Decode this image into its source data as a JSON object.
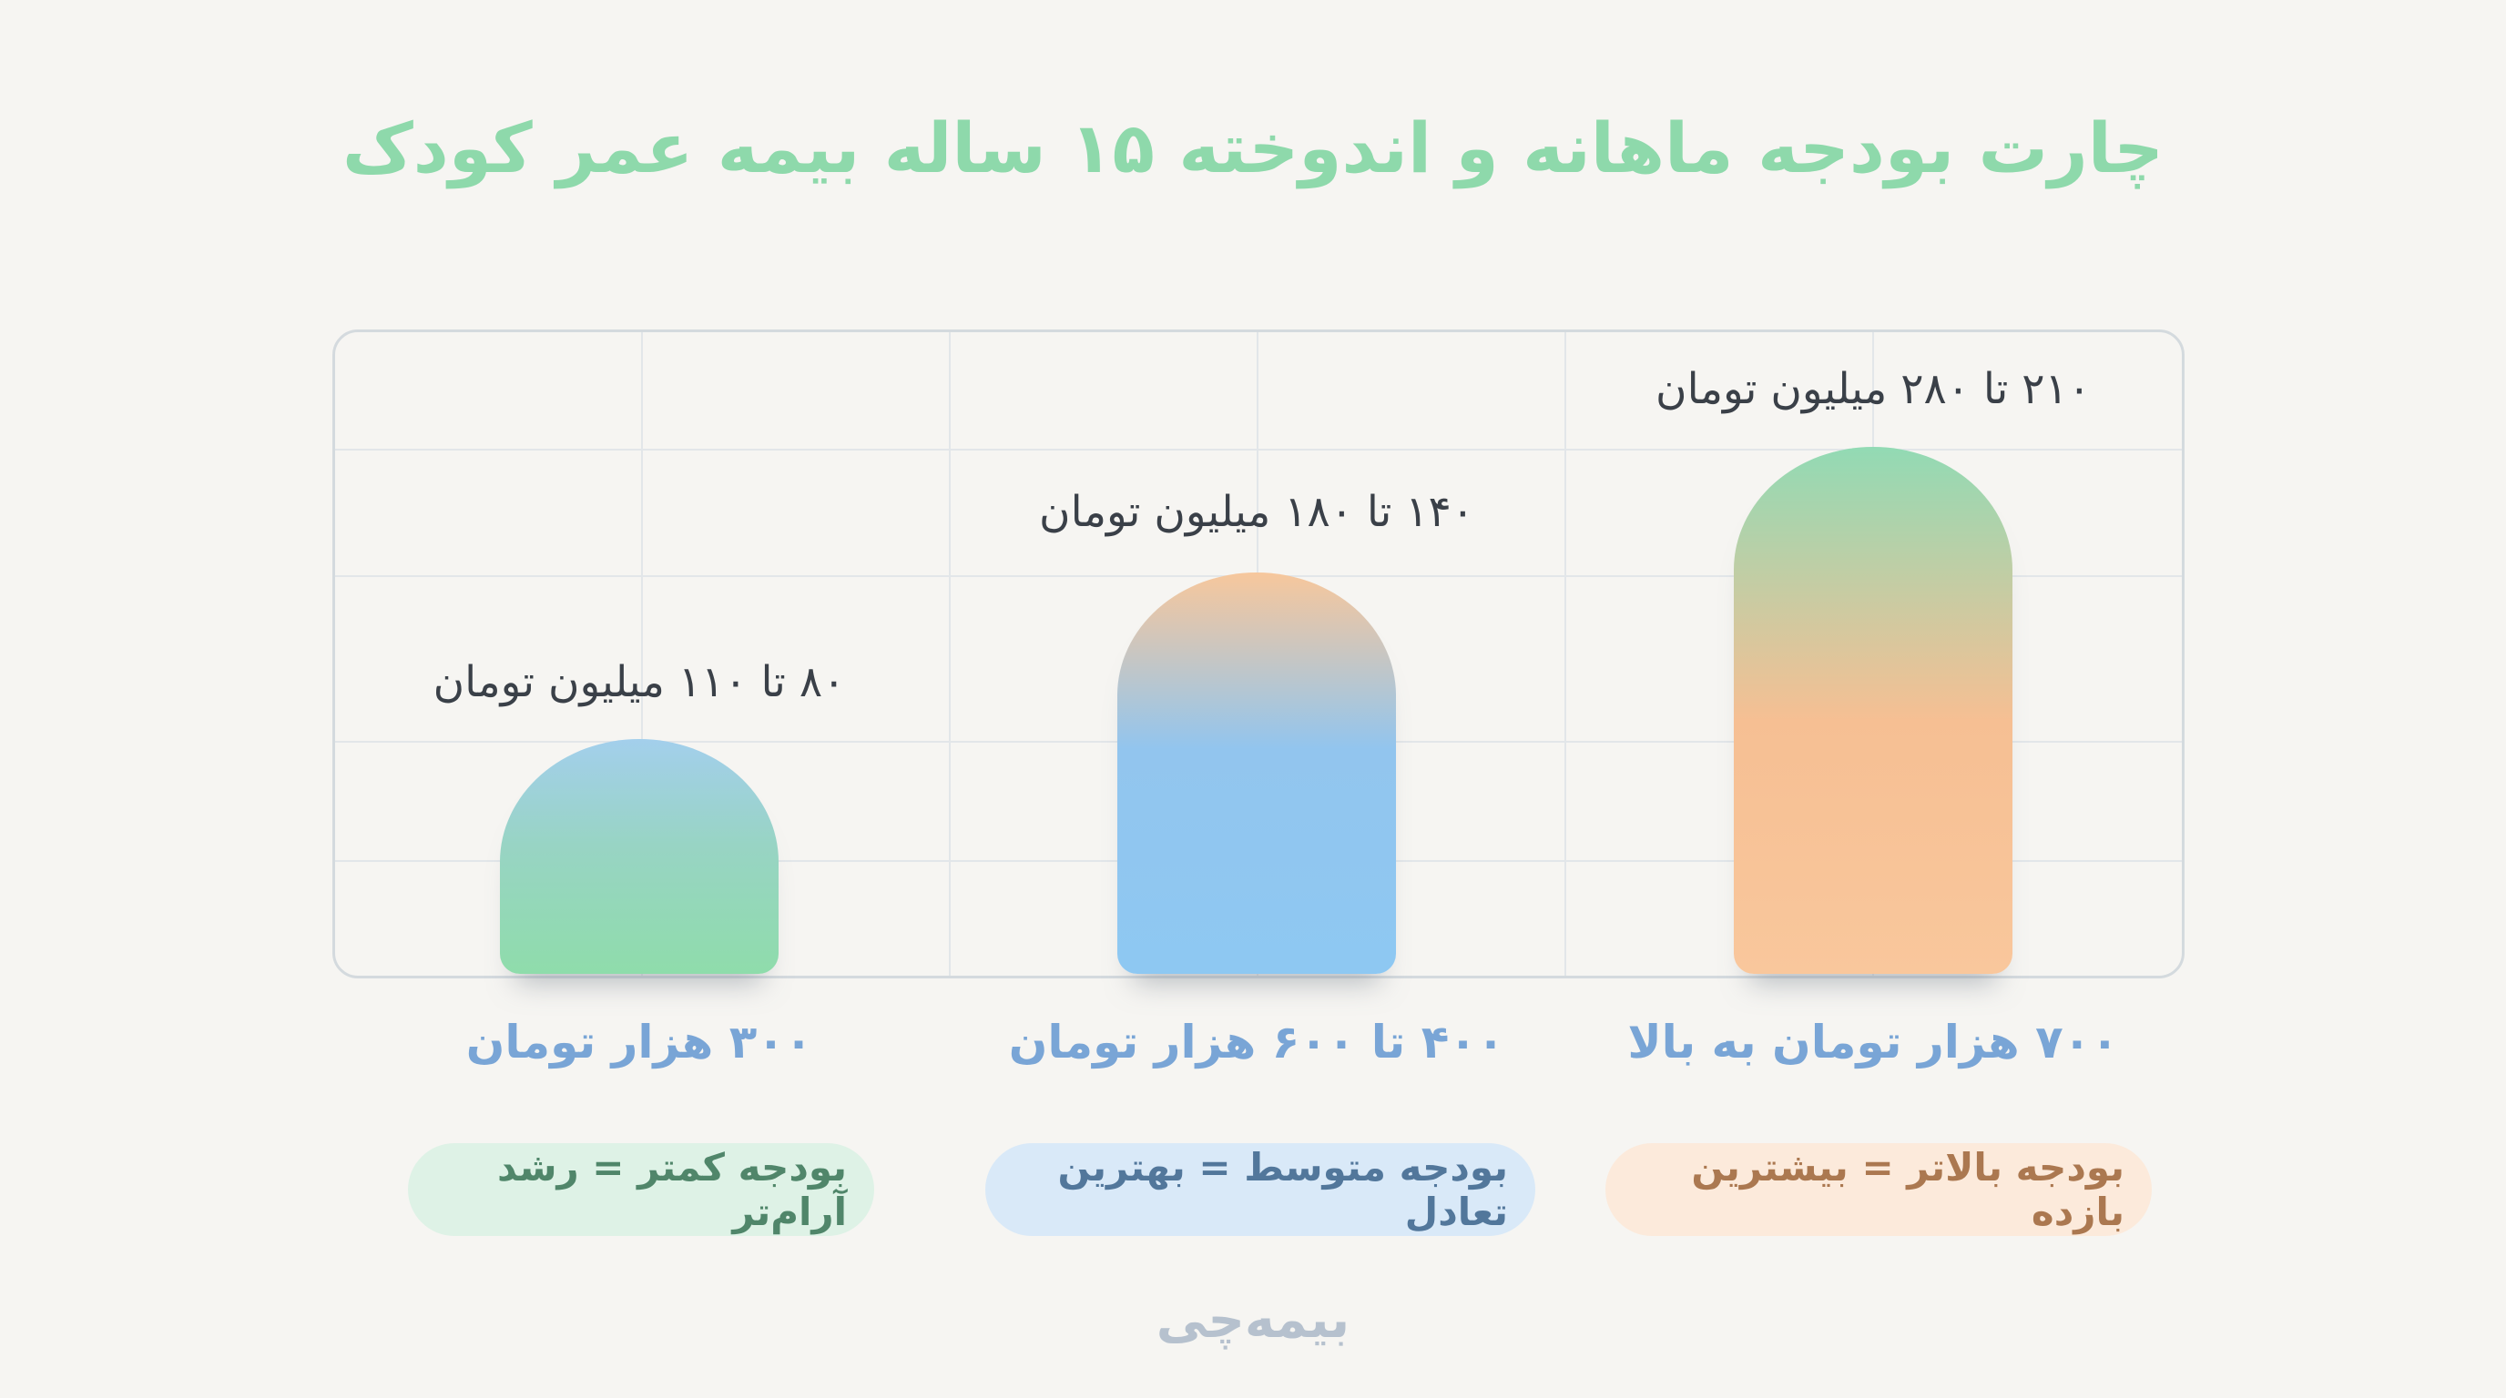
{
  "title": "چارت بودجه ماهانه و اندوخته ۱۵ ساله بیمه عمر کودک",
  "watermark": "بیمه‌چی",
  "bars": [
    {
      "value_label": "۸۰ تا ۱۱۰ میلیون تومان",
      "axis_label": "۳۰۰ هزار تومان",
      "badge": "بودجه کمتر = رشد آرام‌تر"
    },
    {
      "value_label": "۱۴۰ تا ۱۸۰ میلیون تومان",
      "axis_label": "۴۰۰ تا ۶۰۰ هزار تومان",
      "badge": "بودجه متوسط = بهترین تعادل"
    },
    {
      "value_label": "۲۱۰ تا ۲۸۰ میلیون تومان",
      "axis_label": "۷۰۰ هزار تومان به بالا",
      "badge": "بودجه بالاتر = بیشترین بازده"
    }
  ],
  "colors": {
    "background": "#f6f5f2",
    "title_green": "#8ed9ab",
    "value_label_text": "#3a4048",
    "axis_label_blue": "#79a5d6",
    "grid_border": "#d4dade",
    "grid_line": "#e2e6e9",
    "watermark_gray": "#b6c1ce",
    "bar1_gradient": [
      "#a3cfec",
      "#8fdcab"
    ],
    "bar2_gradient": [
      "#f7c79c",
      "#8ec8f2"
    ],
    "bar3_gradient": [
      "#92dab4",
      "#f9c79c"
    ],
    "badge1_bg": "#def2e6",
    "badge1_text": "#50866a",
    "badge2_bg": "#d9e9f8",
    "badge2_text": "#52779b",
    "badge3_bg": "#fceadb",
    "badge3_text": "#ab7850"
  },
  "chart_data": {
    "type": "bar",
    "title": "چارت بودجه ماهانه و اندوخته ۱۵ ساله بیمه عمر کودک",
    "categories": [
      "۳۰۰ هزار تومان",
      "۴۰۰ تا ۶۰۰ هزار تومان",
      "۷۰۰ هزار تومان به بالا"
    ],
    "values": [
      95,
      160,
      245
    ],
    "value_ranges_million_toman": [
      [
        80,
        110
      ],
      [
        140,
        180
      ],
      [
        210,
        280
      ]
    ],
    "value_labels": [
      "۸۰ تا ۱۱۰ میلیون تومان",
      "۱۴۰ تا ۱۸۰ میلیون تومان",
      "۲۱۰ تا ۲۸۰ میلیون تومان"
    ],
    "annotations": [
      "بودجه کمتر = رشد آرام‌تر",
      "بودجه متوسط = بهترین تعادل",
      "بودجه بالاتر = بیشترین بازده"
    ],
    "bar_heights_in_grid_rows": [
      2,
      3.4,
      4.5
    ],
    "grid": true,
    "legend": false,
    "orientation": "vertical",
    "rtl": true
  }
}
